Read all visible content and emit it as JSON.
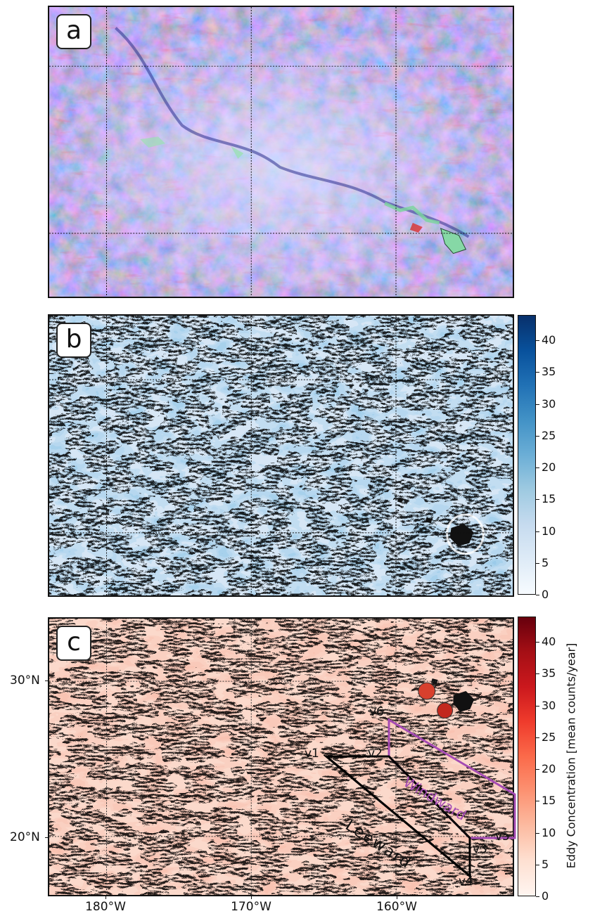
{
  "panels": [
    {
      "id": "a",
      "label": "a"
    },
    {
      "id": "b",
      "label": "b"
    },
    {
      "id": "c",
      "label": "c"
    }
  ],
  "colorbar_b": {
    "ticks": [
      "0",
      "5",
      "10",
      "15",
      "20",
      "25",
      "30",
      "35",
      "40"
    ],
    "colormap": "Blues"
  },
  "colorbar_c": {
    "ticks": [
      "0",
      "5",
      "10",
      "15",
      "20",
      "25",
      "30",
      "35",
      "40"
    ],
    "colormap": "Reds",
    "label": "Eddy Concentration [mean counts/year]"
  },
  "axes": {
    "x_labels": [
      "180°W",
      "170°W",
      "160°W"
    ],
    "y_labels": [
      "30°N",
      "20°N"
    ]
  },
  "map_annotations": {
    "vertices": [
      "v1",
      "v2",
      "v3",
      "v4",
      "v5",
      "v6"
    ],
    "windward_label": "Windward",
    "leeward_label": "Leeward",
    "windward_color": "#a54bb3",
    "leeward_color": "#000000"
  },
  "colors": {
    "panel_a_background": "#8d8fd6",
    "panel_b_background": "#dbe9f6",
    "panel_c_background": "#fbdfd3",
    "island_color": "#111111"
  }
}
